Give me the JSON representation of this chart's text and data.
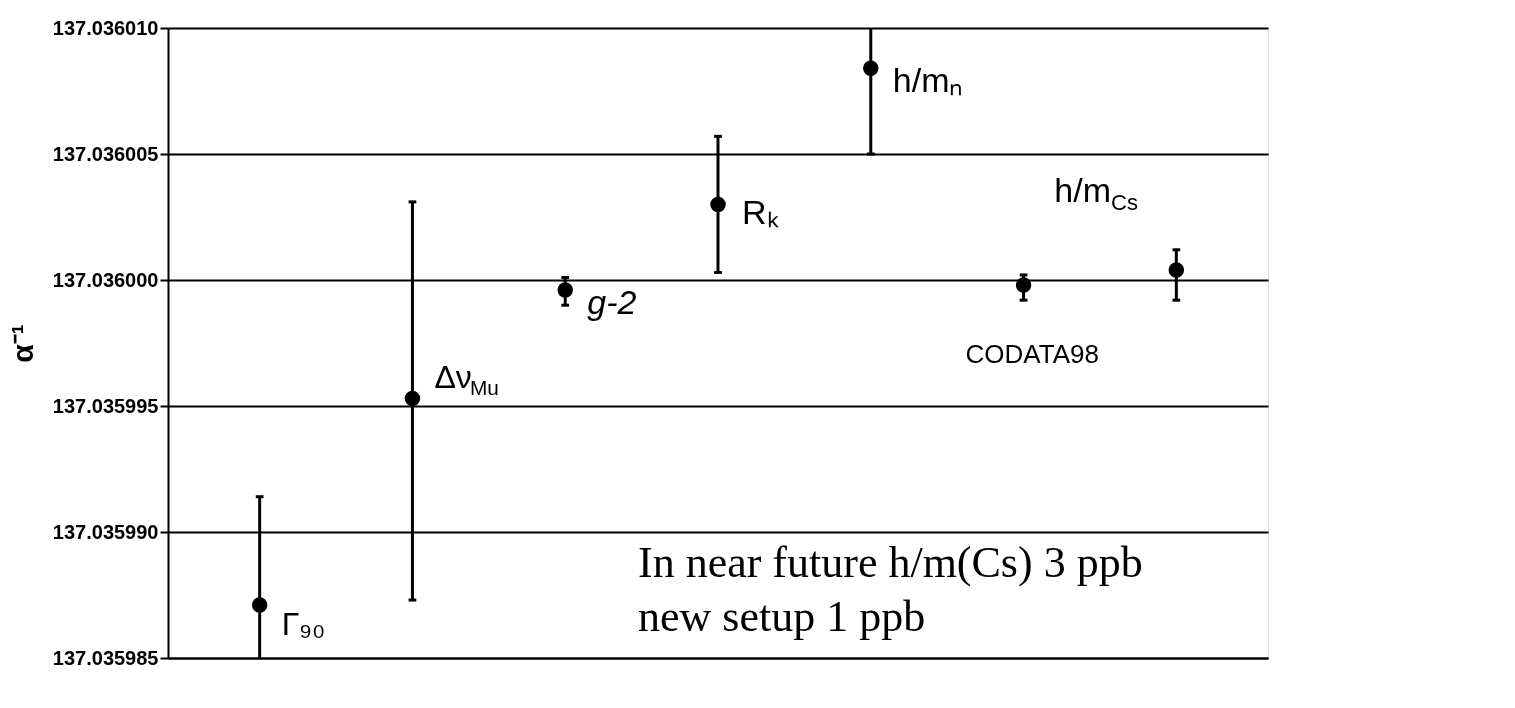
{
  "chart_data": {
    "type": "scatter",
    "ylabel": "α⁻¹",
    "categories": [
      null,
      null,
      null,
      null,
      null,
      null,
      null
    ],
    "values": [
      137.0359871,
      137.0359953,
      137.0359996,
      137.036003,
      137.0360084,
      137.0359998,
      137.0360004
    ],
    "errors": [
      [
        137.035985,
        137.0359914
      ],
      [
        137.0359873,
        137.0360031
      ],
      [
        137.035999,
        137.0360001
      ],
      [
        137.0360003,
        137.0360057
      ],
      [
        137.036005,
        137.03601
      ],
      [
        137.0359992,
        137.0360002
      ],
      [
        137.0359992,
        137.0360012
      ]
    ],
    "color": "#000000",
    "marker": "circle",
    "ylim": [
      137.035985,
      137.03601
    ],
    "yticks": [
      {
        "value": 137.035985,
        "label": "137.035985"
      },
      {
        "value": 137.03599,
        "label": "137.035990"
      },
      {
        "value": 137.035995,
        "label": "137.035995"
      },
      {
        "value": 137.036,
        "label": "137.036000"
      },
      {
        "value": 137.036005,
        "label": "137.036005"
      },
      {
        "value": 137.03601,
        "label": "137.036010"
      }
    ],
    "grid": "y",
    "legend": false,
    "tick_labels": "y",
    "annotations": [
      "Γ₉₀",
      "Δν$_{Mu}$",
      "g-2",
      "Rₖ",
      "h/mₙ",
      "CODATA98",
      "h/m$_{Cs}$",
      "In near future h/m(Cs) 3 ppb\nnew setup 1 ppb"
    ]
  }
}
